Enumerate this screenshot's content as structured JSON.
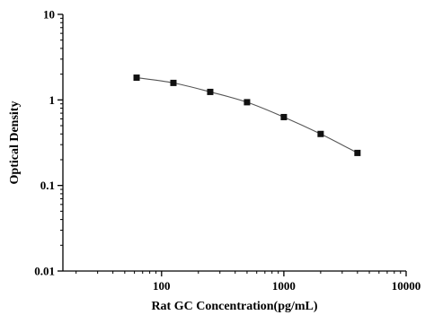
{
  "chart_data": {
    "type": "scatter",
    "title": "",
    "xlabel": "Rat GC Concentration(pg/mL)",
    "ylabel": "Optical Density",
    "x_scale": "log",
    "y_scale": "log",
    "xlim": [
      15.6,
      10000
    ],
    "ylim": [
      0.01,
      10
    ],
    "x_ticks": [
      100,
      1000,
      10000
    ],
    "x_tick_labels": [
      "100",
      "1000",
      "10000"
    ],
    "y_ticks": [
      0.01,
      0.1,
      1,
      10
    ],
    "y_tick_labels": [
      "0.01",
      "0.1",
      "1",
      "10"
    ],
    "grid": false,
    "series": [
      {
        "x": [
          62.5,
          125,
          250,
          500,
          1000,
          2000,
          4000
        ],
        "y": [
          1.82,
          1.58,
          1.24,
          0.94,
          0.63,
          0.4,
          0.24
        ],
        "marker": "square",
        "line": "smooth"
      }
    ],
    "colors": {
      "line": "#555555",
      "marker": "#111111",
      "axis": "#000000"
    }
  }
}
